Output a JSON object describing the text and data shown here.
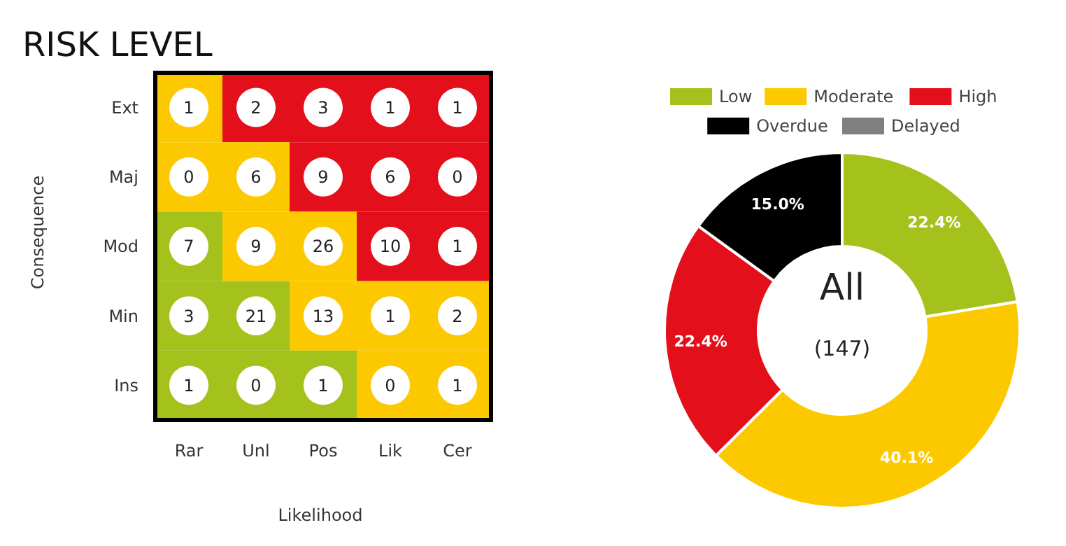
{
  "chart_data": [
    {
      "type": "heatmap",
      "title": "RISK LEVEL",
      "xlabel": "Likelihood",
      "ylabel": "Consequence",
      "categories": [
        "Rar",
        "Unl",
        "Pos",
        "Lik",
        "Cer"
      ],
      "y_categories": [
        "Ext",
        "Maj",
        "Mod",
        "Min",
        "Ins"
      ],
      "cells": [
        [
          1,
          2,
          3,
          1,
          1
        ],
        [
          0,
          6,
          9,
          6,
          0
        ],
        [
          7,
          9,
          26,
          10,
          1
        ],
        [
          3,
          21,
          13,
          1,
          2
        ],
        [
          1,
          0,
          1,
          0,
          1
        ]
      ],
      "colors": [
        [
          "#fcc900",
          "#e3101b",
          "#e3101b",
          "#e3101b",
          "#e3101b"
        ],
        [
          "#fcc900",
          "#fcc900",
          "#e3101b",
          "#e3101b",
          "#e3101b"
        ],
        [
          "#a4c11c",
          "#fcc900",
          "#fcc900",
          "#e3101b",
          "#e3101b"
        ],
        [
          "#a4c11c",
          "#a4c11c",
          "#fcc900",
          "#fcc900",
          "#fcc900"
        ],
        [
          "#a4c11c",
          "#a4c11c",
          "#a4c11c",
          "#fcc900",
          "#fcc900"
        ]
      ],
      "data_labels": true
    },
    {
      "type": "donut",
      "categories": [
        "Low",
        "Moderate",
        "High",
        "Overdue",
        "Delayed"
      ],
      "values": [
        22.4,
        40.1,
        22.4,
        15.0,
        0
      ],
      "colors": [
        "#a4c11c",
        "#fcc900",
        "#e3101b",
        "#000000",
        "#808080"
      ],
      "value_labels": [
        "22.4%",
        "40.1%",
        "22.4%",
        "15.0%",
        null
      ],
      "legend": "top",
      "annotations": [
        "All",
        "(147)"
      ]
    }
  ]
}
